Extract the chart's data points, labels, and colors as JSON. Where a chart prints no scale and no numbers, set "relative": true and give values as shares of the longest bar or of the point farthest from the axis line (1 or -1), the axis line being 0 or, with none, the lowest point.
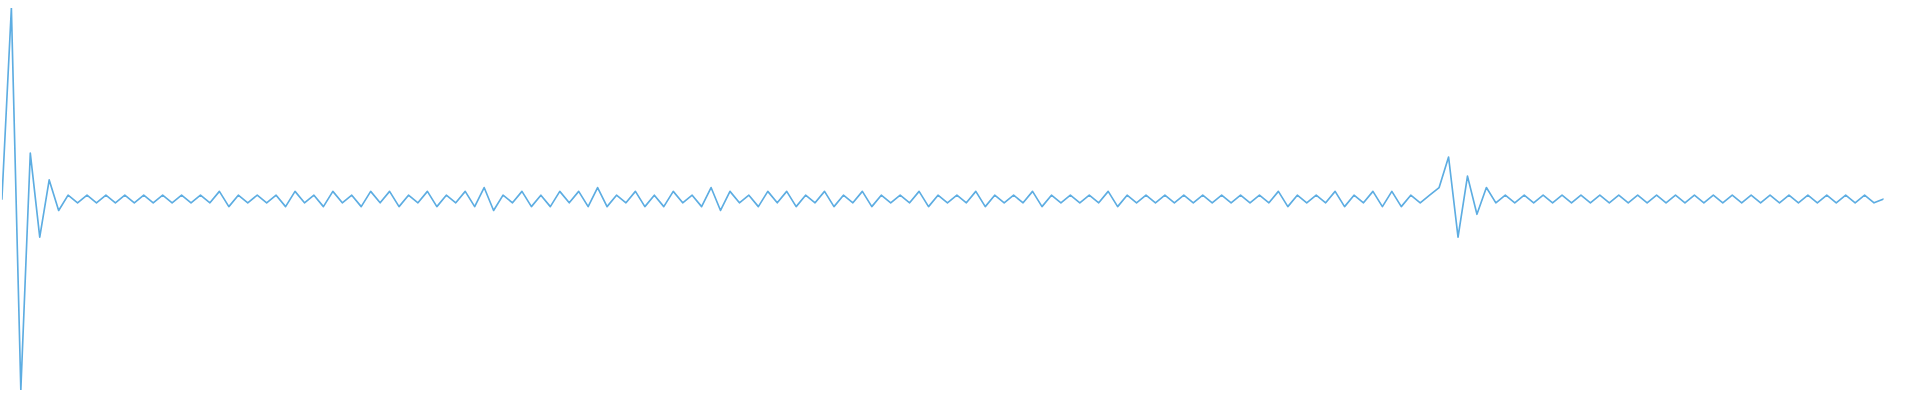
{
  "chart_data": {
    "type": "line",
    "relative": true,
    "color": "#5dade2",
    "line_style": "solid",
    "categories": [
      null,
      null,
      null,
      null,
      null,
      null,
      null,
      null,
      null,
      null,
      null,
      null,
      null,
      null,
      null,
      null,
      null,
      null,
      null,
      null,
      null,
      null,
      null,
      null,
      null,
      null,
      null,
      null,
      null,
      null,
      null,
      null,
      null,
      null,
      null,
      null,
      null,
      null,
      null,
      null,
      null,
      null,
      null,
      null,
      null,
      null,
      null,
      null,
      null,
      null,
      null,
      null,
      null,
      null,
      null,
      null,
      null,
      null,
      null,
      null,
      null,
      null,
      null,
      null,
      null,
      null,
      null,
      null,
      null,
      null,
      null,
      null,
      null,
      null,
      null,
      null,
      null,
      null,
      null,
      null,
      null,
      null,
      null,
      null,
      null,
      null,
      null,
      null,
      null,
      null,
      null,
      null,
      null,
      null,
      null,
      null,
      null,
      null,
      null,
      null,
      null,
      null,
      null,
      null,
      null,
      null,
      null,
      null,
      null,
      null,
      null,
      null,
      null,
      null,
      null,
      null,
      null,
      null,
      null,
      null,
      null,
      null,
      null,
      null,
      null,
      null,
      null,
      null,
      null,
      null,
      null,
      null,
      null,
      null,
      null,
      null,
      null,
      null,
      null,
      null,
      null,
      null,
      null,
      null,
      null,
      null,
      null,
      null,
      null,
      null,
      null,
      null,
      null,
      null,
      null,
      null,
      null,
      null,
      null,
      null,
      null,
      null,
      null,
      null,
      null,
      null,
      null,
      null,
      null,
      null,
      null,
      null,
      null,
      null,
      null,
      null,
      null,
      null,
      null,
      null,
      null,
      null,
      null,
      null,
      null,
      null,
      null,
      null,
      null,
      null,
      null,
      null,
      null,
      null,
      null,
      null,
      null,
      null,
      null,
      null
    ],
    "values": [
      0.5,
      1.0,
      0.0,
      0.62,
      0.4,
      0.55,
      0.47,
      0.51,
      0.49,
      0.51,
      0.49,
      0.51,
      0.49,
      0.51,
      0.49,
      0.51,
      0.49,
      0.51,
      0.49,
      0.51,
      0.49,
      0.51,
      0.49,
      0.52,
      0.48,
      0.51,
      0.49,
      0.51,
      0.49,
      0.51,
      0.48,
      0.52,
      0.49,
      0.51,
      0.48,
      0.52,
      0.49,
      0.51,
      0.48,
      0.52,
      0.49,
      0.52,
      0.48,
      0.51,
      0.49,
      0.52,
      0.48,
      0.51,
      0.49,
      0.52,
      0.48,
      0.53,
      0.47,
      0.51,
      0.49,
      0.52,
      0.48,
      0.51,
      0.48,
      0.52,
      0.49,
      0.52,
      0.48,
      0.53,
      0.48,
      0.51,
      0.49,
      0.52,
      0.48,
      0.51,
      0.48,
      0.52,
      0.49,
      0.51,
      0.48,
      0.53,
      0.47,
      0.52,
      0.49,
      0.51,
      0.48,
      0.52,
      0.49,
      0.52,
      0.48,
      0.51,
      0.49,
      0.52,
      0.48,
      0.51,
      0.49,
      0.52,
      0.48,
      0.51,
      0.49,
      0.51,
      0.49,
      0.52,
      0.48,
      0.51,
      0.49,
      0.51,
      0.49,
      0.52,
      0.48,
      0.51,
      0.49,
      0.51,
      0.49,
      0.52,
      0.48,
      0.51,
      0.49,
      0.51,
      0.49,
      0.51,
      0.49,
      0.52,
      0.48,
      0.51,
      0.49,
      0.51,
      0.49,
      0.51,
      0.49,
      0.51,
      0.49,
      0.51,
      0.49,
      0.51,
      0.49,
      0.51,
      0.49,
      0.51,
      0.49,
      0.52,
      0.48,
      0.51,
      0.49,
      0.51,
      0.49,
      0.52,
      0.48,
      0.51,
      0.49,
      0.52,
      0.48,
      0.52,
      0.48,
      0.51,
      0.49,
      0.51,
      0.53,
      0.61,
      0.4,
      0.56,
      0.46,
      0.53,
      0.49,
      0.51,
      0.49,
      0.51,
      0.49,
      0.51,
      0.49,
      0.51,
      0.49,
      0.51,
      0.49,
      0.51,
      0.49,
      0.51,
      0.49,
      0.51,
      0.49,
      0.51,
      0.49,
      0.51,
      0.49,
      0.51,
      0.49,
      0.51,
      0.49,
      0.51,
      0.49,
      0.51,
      0.49,
      0.51,
      0.49,
      0.51,
      0.49,
      0.51,
      0.49,
      0.51,
      0.49,
      0.51,
      0.49,
      0.51,
      0.49,
      0.5
    ]
  }
}
